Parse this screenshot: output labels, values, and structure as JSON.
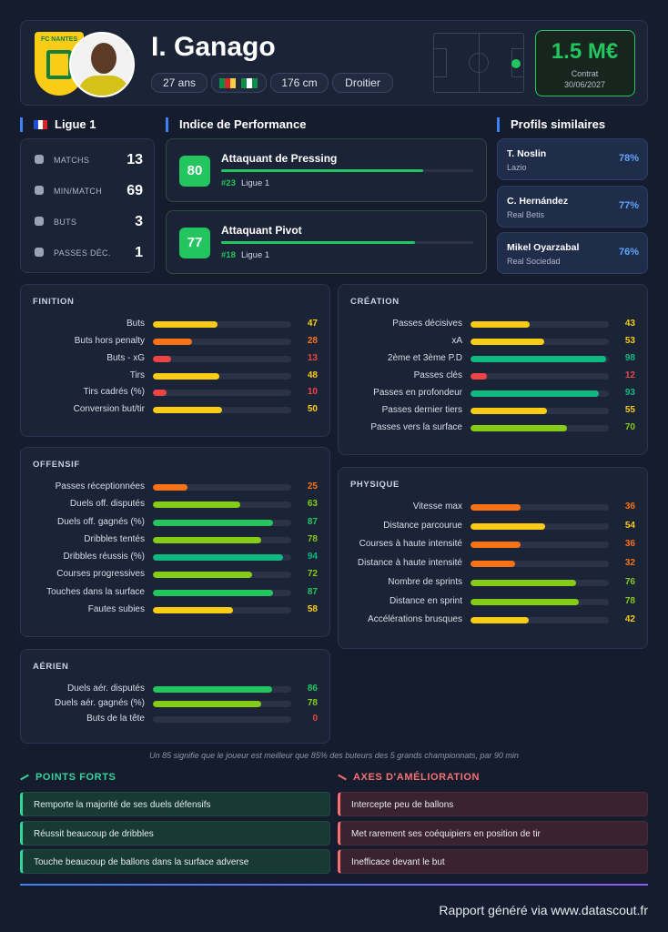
{
  "header": {
    "club_logo": "FC NANTES",
    "name": "I. Ganago",
    "tags": [
      "27 ans",
      "176 cm",
      "Droitier"
    ],
    "market_value": "1.5 M€",
    "contract_label": "Contrat",
    "contract_date": "30/06/2027"
  },
  "league": {
    "name": "Ligue 1",
    "stats": [
      {
        "label": "MATCHS",
        "value": 13
      },
      {
        "label": "MIN/MATCH",
        "value": 69
      },
      {
        "label": "BUTS",
        "value": 3
      },
      {
        "label": "PASSES DÉC.",
        "value": 1
      }
    ]
  },
  "performance": {
    "title": "Indice de Performance",
    "items": [
      {
        "score": 80,
        "role": "Attaquant de Pressing",
        "rank": "#23",
        "league": "Ligue 1"
      },
      {
        "score": 77,
        "role": "Attaquant Pivot",
        "rank": "#18",
        "league": "Ligue 1"
      }
    ]
  },
  "similar": {
    "title": "Profils similaires",
    "items": [
      {
        "name": "T. Noslin",
        "club": "Lazio",
        "match": "78%"
      },
      {
        "name": "C. Hernández",
        "club": "Real Betis",
        "match": "77%"
      },
      {
        "name": "Mikel Oyarzabal",
        "club": "Real Sociedad",
        "match": "76%"
      }
    ]
  },
  "sections": {
    "finition": {
      "title": "FINITION",
      "rows": [
        {
          "label": "Buts",
          "value": 47
        },
        {
          "label": "Buts hors penalty",
          "value": 28
        },
        {
          "label": "Buts - xG",
          "value": 13
        },
        {
          "label": "Tirs",
          "value": 48
        },
        {
          "label": "Tirs cadrés (%)",
          "value": 10
        },
        {
          "label": "Conversion but/tir",
          "value": 50
        }
      ]
    },
    "creation": {
      "title": "CRÉATION",
      "rows": [
        {
          "label": "Passes décisives",
          "value": 43
        },
        {
          "label": "xA",
          "value": 53
        },
        {
          "label": "2ème et 3ème P.D",
          "value": 98
        },
        {
          "label": "Passes clés",
          "value": 12
        },
        {
          "label": "Passes en profondeur",
          "value": 93
        },
        {
          "label": "Passes dernier tiers",
          "value": 55
        },
        {
          "label": "Passes vers la surface",
          "value": 70
        }
      ]
    },
    "offensif": {
      "title": "OFFENSIF",
      "rows": [
        {
          "label": "Passes réceptionnées",
          "value": 25
        },
        {
          "label": "Duels off. disputés",
          "value": 63
        },
        {
          "label": "Duels off. gagnés (%)",
          "value": 87
        },
        {
          "label": "Dribbles tentés",
          "value": 78
        },
        {
          "label": "Dribbles réussis (%)",
          "value": 94
        },
        {
          "label": "Courses progressives",
          "value": 72
        },
        {
          "label": "Touches dans la surface",
          "value": 87
        },
        {
          "label": "Fautes subies",
          "value": 58
        }
      ]
    },
    "physique": {
      "title": "PHYSIQUE",
      "rows": [
        {
          "label": "Vitesse max",
          "value": 36
        },
        {
          "label": "Distance parcourue",
          "value": 54
        },
        {
          "label": "Courses à haute intensité",
          "value": 36
        },
        {
          "label": "Distance à haute intensité",
          "value": 32
        },
        {
          "label": "Nombre de sprints",
          "value": 76
        },
        {
          "label": "Distance en sprint",
          "value": 78
        },
        {
          "label": "Accélérations brusques",
          "value": 42
        }
      ]
    },
    "aerien": {
      "title": "AÉRIEN",
      "rows": [
        {
          "label": "Duels aér. disputés",
          "value": 86
        },
        {
          "label": "Duels aér. gagnés (%)",
          "value": 78
        },
        {
          "label": "Buts de la tête",
          "value": 0
        }
      ]
    }
  },
  "footnote": "Un 85 signifie que le joueur est meilleur que 85% des buteurs des 5 grands championnats, par 90 min",
  "strengths": {
    "title": "POINTS FORTS",
    "items": [
      "Remporte la majorité de ses duels défensifs",
      "Réussit beaucoup de dribbles",
      "Touche beaucoup de ballons dans la surface adverse"
    ]
  },
  "weaknesses": {
    "title": "AXES D'AMÉLIORATION",
    "items": [
      "Intercepte peu de ballons",
      "Met rarement ses coéquipiers en position de tir",
      "Inefficace devant le but"
    ]
  },
  "footer": "Rapport généré via www.datascout.fr"
}
